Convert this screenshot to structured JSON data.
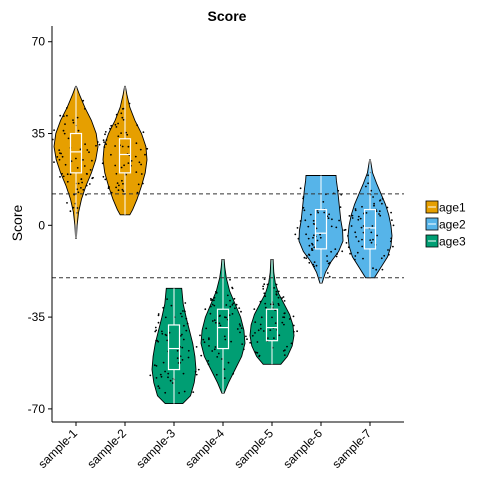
{
  "chart_data": {
    "type": "violin",
    "title": "Score",
    "xlabel": "",
    "ylabel": "Score",
    "ylim": [
      -75,
      76
    ],
    "y_ticks": [
      -70,
      -35,
      0,
      35,
      70
    ],
    "y_tick_labels": [
      "-70",
      "-35",
      "0",
      "35",
      "70"
    ],
    "categories": [
      "sample-1",
      "sample-2",
      "sample-3",
      "sample-4",
      "sample-5",
      "sample-6",
      "sample-7"
    ],
    "groups": [
      "age1",
      "age1",
      "age3",
      "age3",
      "age3",
      "age2",
      "age2"
    ],
    "legend": {
      "position": "right",
      "items": [
        {
          "name": "age1",
          "color": "#E69F00"
        },
        {
          "name": "age2",
          "color": "#56B4E9"
        },
        {
          "name": "age3",
          "color": "#009E73"
        }
      ]
    },
    "reference_lines": [
      12,
      -20
    ],
    "violins": [
      {
        "name": "sample-1",
        "min": -5,
        "max": 53,
        "q1": 20,
        "median": 28,
        "q3": 35,
        "shape": [
          [
            -5,
            0.02
          ],
          [
            0,
            0.05
          ],
          [
            5,
            0.12
          ],
          [
            10,
            0.25
          ],
          [
            15,
            0.45
          ],
          [
            20,
            0.7
          ],
          [
            25,
            0.9
          ],
          [
            30,
            1.0
          ],
          [
            35,
            0.92
          ],
          [
            40,
            0.7
          ],
          [
            45,
            0.4
          ],
          [
            50,
            0.15
          ],
          [
            53,
            0.02
          ]
        ]
      },
      {
        "name": "sample-2",
        "min": 4,
        "max": 53,
        "q1": 20,
        "median": 27,
        "q3": 33,
        "shape": [
          [
            4,
            0.22
          ],
          [
            6,
            0.35
          ],
          [
            10,
            0.55
          ],
          [
            15,
            0.75
          ],
          [
            20,
            0.92
          ],
          [
            25,
            1.0
          ],
          [
            30,
            0.95
          ],
          [
            35,
            0.75
          ],
          [
            40,
            0.45
          ],
          [
            45,
            0.22
          ],
          [
            50,
            0.08
          ],
          [
            53,
            0.02
          ]
        ]
      },
      {
        "name": "sample-3",
        "min": -68,
        "max": -24,
        "q1": -55,
        "median": -47,
        "q3": -38,
        "shape": [
          [
            -68,
            0.4
          ],
          [
            -65,
            0.75
          ],
          [
            -60,
            0.92
          ],
          [
            -55,
            1.0
          ],
          [
            -50,
            0.95
          ],
          [
            -45,
            0.85
          ],
          [
            -40,
            0.7
          ],
          [
            -35,
            0.55
          ],
          [
            -30,
            0.42
          ],
          [
            -24,
            0.35
          ]
        ]
      },
      {
        "name": "sample-4",
        "min": -64,
        "max": -13,
        "q1": -47,
        "median": -39,
        "q3": -32,
        "shape": [
          [
            -64,
            0.05
          ],
          [
            -60,
            0.25
          ],
          [
            -55,
            0.55
          ],
          [
            -50,
            0.85
          ],
          [
            -45,
            1.0
          ],
          [
            -40,
            0.95
          ],
          [
            -35,
            0.8
          ],
          [
            -30,
            0.55
          ],
          [
            -25,
            0.3
          ],
          [
            -20,
            0.15
          ],
          [
            -16,
            0.08
          ],
          [
            -13,
            0.05
          ]
        ]
      },
      {
        "name": "sample-5",
        "min": -53,
        "max": -13,
        "q1": -44,
        "median": -39,
        "q3": -32,
        "shape": [
          [
            -53,
            0.4
          ],
          [
            -50,
            0.7
          ],
          [
            -46,
            0.92
          ],
          [
            -42,
            1.0
          ],
          [
            -38,
            0.95
          ],
          [
            -34,
            0.8
          ],
          [
            -30,
            0.55
          ],
          [
            -26,
            0.3
          ],
          [
            -22,
            0.15
          ],
          [
            -18,
            0.08
          ],
          [
            -13,
            0.05
          ]
        ]
      },
      {
        "name": "sample-6",
        "min": -22,
        "max": 19,
        "q1": -9,
        "median": -3,
        "q3": 6,
        "shape": [
          [
            -22,
            0.05
          ],
          [
            -18,
            0.2
          ],
          [
            -14,
            0.45
          ],
          [
            -10,
            0.8
          ],
          [
            -6,
            1.0
          ],
          [
            -2,
            0.98
          ],
          [
            2,
            0.9
          ],
          [
            6,
            0.85
          ],
          [
            10,
            0.8
          ],
          [
            14,
            0.75
          ],
          [
            17,
            0.7
          ],
          [
            19,
            0.68
          ]
        ]
      },
      {
        "name": "sample-7",
        "min": -20,
        "max": 25,
        "q1": -9,
        "median": -1,
        "q3": 6,
        "shape": [
          [
            -20,
            0.2
          ],
          [
            -16,
            0.5
          ],
          [
            -12,
            0.8
          ],
          [
            -8,
            0.95
          ],
          [
            -4,
            1.0
          ],
          [
            0,
            0.95
          ],
          [
            4,
            0.85
          ],
          [
            8,
            0.7
          ],
          [
            12,
            0.5
          ],
          [
            16,
            0.3
          ],
          [
            20,
            0.12
          ],
          [
            25,
            0.02
          ]
        ]
      }
    ]
  }
}
